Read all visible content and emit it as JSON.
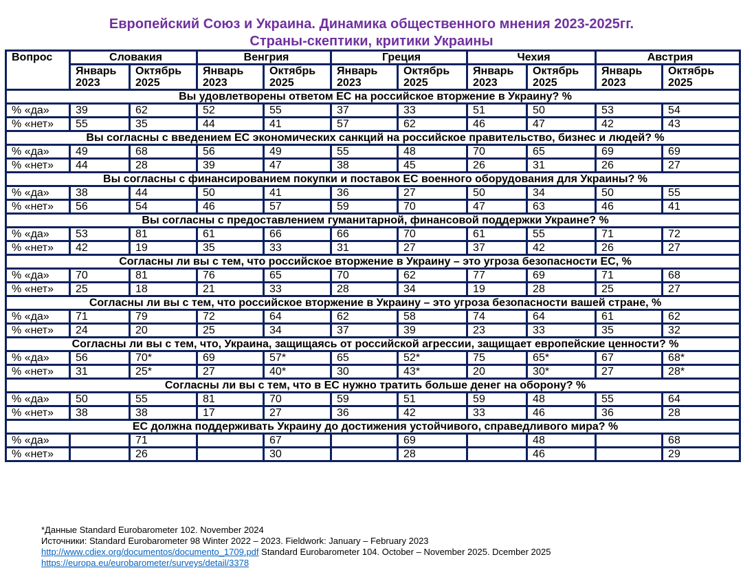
{
  "title": {
    "line1": "Европейский Союз и Украина. Динамика общественного мнения 2023-2025гг.",
    "line2": "Страны-скептики, критики Украины"
  },
  "table": {
    "question_header": "Вопрос",
    "countries": [
      "Словакия",
      "Венгрия",
      "Греция",
      "Чехия",
      "Австрия"
    ],
    "periods": [
      {
        "month": "Январь",
        "year": "2023"
      },
      {
        "month": "Октябрь",
        "year": "2025"
      }
    ],
    "row_labels": {
      "yes": "% «да»",
      "no": "% «нет»"
    },
    "questions": [
      {
        "text": "Вы удовлетворены ответом ЕС на российское вторжение в Украину? %",
        "yes": [
          "39",
          "62",
          "52",
          "55",
          "37",
          "33",
          "51",
          "50",
          "53",
          "54"
        ],
        "no": [
          "55",
          "35",
          "44",
          "41",
          "57",
          "62",
          "46",
          "47",
          "42",
          "43"
        ]
      },
      {
        "text": "Вы согласны с введением ЕС экономических санкций на российское правительство, бизнес и людей? %",
        "yes": [
          "49",
          "68",
          "56",
          "49",
          "55",
          "48",
          "70",
          "65",
          "69",
          "69"
        ],
        "no": [
          "44",
          "28",
          "39",
          "47",
          "38",
          "45",
          "26",
          "31",
          "26",
          "27"
        ]
      },
      {
        "text": "Вы согласны с финансированием покупки и поставок ЕС военного оборудования для Украины? %",
        "yes": [
          "38",
          "44",
          "50",
          "41",
          "36",
          "27",
          "50",
          "34",
          "50",
          "55"
        ],
        "no": [
          "56",
          "54",
          "46",
          "57",
          "59",
          "70",
          "47",
          "63",
          "46",
          "41"
        ]
      },
      {
        "text": "Вы согласны с предоставлением гуманитарной, финансовой поддержки Украине? %",
        "yes": [
          "53",
          "81",
          "61",
          "66",
          "66",
          "70",
          "61",
          "55",
          "71",
          "72"
        ],
        "no": [
          "42",
          "19",
          "35",
          "33",
          "31",
          "27",
          "37",
          "42",
          "26",
          "27"
        ]
      },
      {
        "text": "Согласны ли вы с тем, что российское вторжение в Украину – это угроза безопасности ЕС, %",
        "yes": [
          "70",
          "81",
          "76",
          "65",
          "70",
          "62",
          "77",
          "69",
          "71",
          "68"
        ],
        "no": [
          "25",
          "18",
          "21",
          "33",
          "28",
          "34",
          "19",
          "28",
          "25",
          "27"
        ]
      },
      {
        "text": "Согласны ли вы с тем, что российское вторжение в Украину – это угроза безопасности вашей стране, %",
        "yes": [
          "71",
          "79",
          "72",
          "64",
          "62",
          "58",
          "74",
          "64",
          "61",
          "62"
        ],
        "no": [
          "24",
          "20",
          "25",
          "34",
          "37",
          "39",
          "23",
          "33",
          "35",
          "32"
        ]
      },
      {
        "text": "Согласны ли вы с тем, что, Украина, защищаясь от российской агрессии, защищает европейские ценности? %",
        "yes": [
          "56",
          "70*",
          "69",
          "57*",
          "65",
          "52*",
          "75",
          "65*",
          "67",
          "68*"
        ],
        "no": [
          "31",
          "25*",
          "27",
          "40*",
          "30",
          "43*",
          "20",
          "30*",
          "27",
          "28*"
        ]
      },
      {
        "text": "Согласны ли вы с тем, что в ЕС нужно тратить больше денег на оборону? %",
        "yes": [
          "50",
          "55",
          "81",
          "70",
          "59",
          "51",
          "59",
          "48",
          "55",
          "64"
        ],
        "no": [
          "38",
          "38",
          "17",
          "27",
          "36",
          "42",
          "33",
          "46",
          "36",
          "28"
        ]
      },
      {
        "text": "ЕС должна поддерживать Украину до достижения устойчивого, справедливого мира? %",
        "yes": [
          "",
          "71",
          "",
          "67",
          "",
          "69",
          "",
          "48",
          "",
          "68"
        ],
        "no": [
          "",
          "26",
          "",
          "30",
          "",
          "28",
          "",
          "46",
          "",
          "29"
        ]
      }
    ]
  },
  "notes": {
    "footnote": "*Данные Standard Eurobarometer 102. November 2024",
    "sources": "Источники: Standard Eurobarometer 98 Winter 2022 – 2023. Fieldwork: January – February 2023",
    "link1": "http://www.cdiex.org/documentos/documento_1709.pdf",
    "link1_suffix": " Standard Eurobarometer 104. October – November 2025. Dcember 2025",
    "link2": "https://europa.eu/eurobarometer/surveys/detail/3378"
  },
  "colors": {
    "title": "#7030a0",
    "country": "#c00000",
    "header_bg": "#fce4d6",
    "question_bg": "#fff2cc",
    "border": "#0d2160",
    "link": "#0563c1"
  }
}
